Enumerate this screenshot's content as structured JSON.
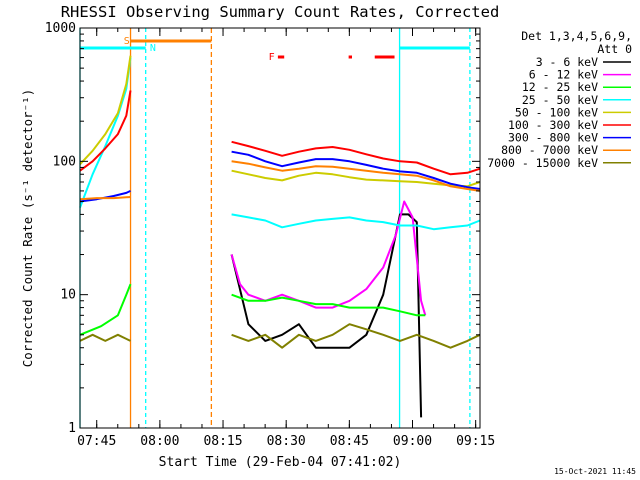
{
  "chart_data": {
    "type": "line",
    "title": "RHESSI Observing Summary Count Rates, Corrected",
    "xlabel": "Start Time (29-Feb-04 07:41:02)",
    "ylabel": "Corrected Count Rate (s⁻¹ detector⁻¹)",
    "yscale": "log",
    "ylim": [
      1,
      1000
    ],
    "xlim_minutes": [
      0,
      95
    ],
    "x_tick_labels": [
      "07:45",
      "08:00",
      "08:15",
      "08:30",
      "08:45",
      "09:00",
      "09:15"
    ],
    "x_tick_minutes": [
      3.97,
      18.97,
      33.97,
      48.97,
      63.97,
      78.97,
      93.97
    ],
    "y_tick_labels": [
      "1",
      "10",
      "100",
      "1000"
    ],
    "y_tick_values": [
      1,
      10,
      100,
      1000
    ],
    "legend": {
      "placement": "right",
      "header": [
        "Det 1,3,4,5,6,9,",
        "Att 0"
      ],
      "entries": [
        {
          "label": "3 - 6 keV",
          "color": "#000000"
        },
        {
          "label": "6 - 12 keV",
          "color": "#ff00ff"
        },
        {
          "label": "12 - 25 keV",
          "color": "#00ff00"
        },
        {
          "label": "25 - 50 keV",
          "color": "#00ffff"
        },
        {
          "label": "50 - 100 keV",
          "color": "#cccc00"
        },
        {
          "label": "100 - 300 keV",
          "color": "#ff0000"
        },
        {
          "label": "300 - 800 keV",
          "color": "#0000ff"
        },
        {
          "label": "800 - 7000 keV",
          "color": "#ff8000"
        },
        {
          "label": "7000 - 15000 keV",
          "color": "#808000"
        }
      ]
    },
    "flags": {
      "S": "S",
      "N": "N",
      "F": "F"
    },
    "footer_date": "15-Oct-2021 11:45",
    "series": [
      {
        "name": "3 - 6 keV",
        "color": "#000000",
        "segments": [
          {
            "t": [
              36,
              40,
              44,
              48,
              52,
              56,
              60,
              64,
              68,
              72,
              76,
              78,
              80,
              81
            ],
            "v": [
              20,
              6,
              4.5,
              5,
              6,
              4,
              4,
              4,
              5,
              10,
              40,
              40,
              35,
              1.2
            ]
          }
        ]
      },
      {
        "name": "6 - 12 keV",
        "color": "#ff00ff",
        "segments": [
          {
            "t": [
              36,
              38,
              40,
              44,
              48,
              52,
              56,
              60,
              64,
              68,
              72,
              75,
              77,
              79,
              81,
              82
            ],
            "v": [
              20,
              12,
              10,
              9,
              10,
              9,
              8,
              8,
              9,
              11,
              16,
              28,
              50,
              38,
              9,
              7
            ]
          }
        ]
      },
      {
        "name": "12 - 25 keV",
        "color": "#00ff00",
        "segments": [
          {
            "t": [
              0,
              5,
              9,
              11,
              12
            ],
            "v": [
              5,
              5.8,
              7,
              10,
              12
            ]
          },
          {
            "t": [
              36,
              40,
              44,
              48,
              52,
              56,
              60,
              64,
              68,
              72,
              76,
              80,
              82
            ],
            "v": [
              10,
              9,
              9,
              9.5,
              9,
              8.5,
              8.5,
              8,
              8,
              8,
              7.5,
              7,
              7
            ]
          }
        ]
      },
      {
        "name": "25 - 50 keV",
        "color": "#00ffff",
        "segments": [
          {
            "t": [
              0,
              3,
              6,
              9,
              11,
              12
            ],
            "v": [
              45,
              80,
              130,
              220,
              350,
              600
            ]
          },
          {
            "t": [
              36,
              40,
              44,
              48,
              52,
              56,
              60,
              64,
              68,
              72,
              76,
              80,
              84,
              88,
              92,
              95
            ],
            "v": [
              40,
              38,
              36,
              32,
              34,
              36,
              37,
              38,
              36,
              35,
              33,
              33,
              31,
              32,
              33,
              36
            ]
          }
        ]
      },
      {
        "name": "50 - 100 keV",
        "color": "#cccc00",
        "segments": [
          {
            "t": [
              0,
              3,
              6,
              9,
              11,
              12
            ],
            "v": [
              95,
              120,
              160,
              230,
              380,
              620
            ]
          },
          {
            "t": [
              36,
              40,
              44,
              48,
              52,
              56,
              60,
              64,
              68,
              72,
              76,
              80,
              84,
              88,
              92,
              95
            ],
            "v": [
              85,
              80,
              75,
              72,
              78,
              82,
              80,
              76,
              73,
              72,
              71,
              70,
              68,
              66,
              65,
              70
            ]
          }
        ]
      },
      {
        "name": "100 - 300 keV",
        "color": "#ff0000",
        "segments": [
          {
            "t": [
              0,
              3,
              6,
              9,
              11,
              12
            ],
            "v": [
              85,
              100,
              125,
              160,
              220,
              340
            ]
          },
          {
            "t": [
              36,
              40,
              44,
              48,
              52,
              56,
              60,
              64,
              68,
              72,
              76,
              80,
              84,
              88,
              92,
              95
            ],
            "v": [
              140,
              130,
              120,
              110,
              118,
              125,
              128,
              122,
              113,
              105,
              100,
              98,
              88,
              80,
              82,
              88
            ]
          }
        ]
      },
      {
        "name": "300 - 800 keV",
        "color": "#0000ff",
        "segments": [
          {
            "t": [
              0,
              4,
              8,
              11,
              12
            ],
            "v": [
              50,
              52,
              55,
              58,
              60
            ]
          },
          {
            "t": [
              36,
              40,
              44,
              48,
              52,
              56,
              60,
              64,
              68,
              72,
              76,
              80,
              84,
              88,
              92,
              95
            ],
            "v": [
              118,
              112,
              100,
              92,
              98,
              104,
              104,
              100,
              94,
              88,
              84,
              82,
              75,
              68,
              64,
              62
            ]
          }
        ]
      },
      {
        "name": "800 - 7000 keV",
        "color": "#ff8000",
        "segments": [
          {
            "t": [
              0,
              4,
              8,
              12
            ],
            "v": [
              52,
              53,
              53,
              54
            ]
          },
          {
            "t": [
              36,
              40,
              44,
              48,
              52,
              56,
              60,
              64,
              68,
              72,
              76,
              80,
              84,
              88,
              92,
              95
            ],
            "v": [
              100,
              96,
              90,
              85,
              88,
              92,
              91,
              88,
              85,
              82,
              80,
              78,
              72,
              65,
              62,
              60
            ]
          }
        ]
      },
      {
        "name": "7000 - 15000 keV",
        "color": "#808000",
        "segments": [
          {
            "t": [
              0,
              3,
              6,
              9,
              12
            ],
            "v": [
              4.5,
              5,
              4.5,
              5,
              4.5
            ]
          },
          {
            "t": [
              36,
              40,
              44,
              48,
              52,
              56,
              60,
              64,
              68,
              72,
              76,
              80,
              84,
              88,
              92,
              95
            ],
            "v": [
              5,
              4.5,
              5,
              4,
              5,
              4.5,
              5,
              6,
              5.5,
              5,
              4.5,
              5,
              4.5,
              4,
              4.5,
              5
            ]
          }
        ]
      }
    ]
  }
}
